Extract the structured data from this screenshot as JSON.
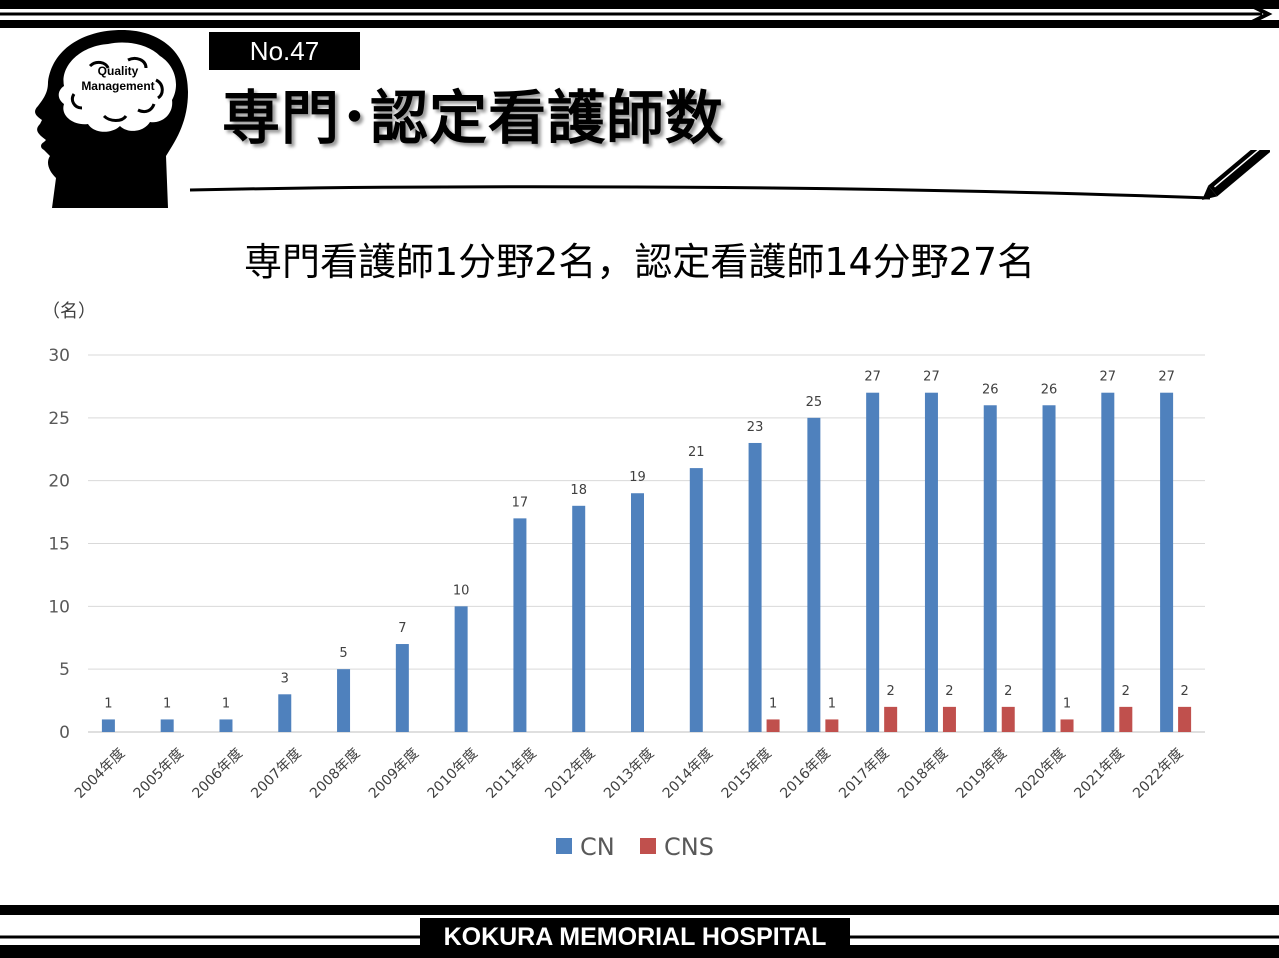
{
  "header": {
    "number_badge": "No.47",
    "title": "専門･認定看護師数",
    "logo_text_line1": "Quality",
    "logo_text_line2": "Management"
  },
  "subtitle": "専門看護師1分野2名，認定看護師14分野27名",
  "footer": {
    "hospital_name": "KOKURA MEMORIAL HOSPITAL"
  },
  "colors": {
    "cn": "#4F81BD",
    "cns": "#C0504D",
    "grid": "#D9D9D9"
  },
  "chart_data": {
    "type": "bar",
    "ylabel": "（名）",
    "ylim": [
      0,
      30
    ],
    "yticks": [
      0,
      5,
      10,
      15,
      20,
      25,
      30
    ],
    "grid": true,
    "legend_position": "bottom",
    "categories": [
      "2004年度",
      "2005年度",
      "2006年度",
      "2007年度",
      "2008年度",
      "2009年度",
      "2010年度",
      "2011年度",
      "2012年度",
      "2013年度",
      "2014年度",
      "2015年度",
      "2016年度",
      "2017年度",
      "2018年度",
      "2019年度",
      "2020年度",
      "2021年度",
      "2022年度"
    ],
    "series": [
      {
        "name": "CN",
        "values": [
          1,
          1,
          1,
          3,
          5,
          7,
          10,
          17,
          18,
          19,
          21,
          23,
          25,
          27,
          27,
          26,
          26,
          27,
          27
        ]
      },
      {
        "name": "CNS",
        "values": [
          0,
          0,
          0,
          0,
          0,
          0,
          0,
          0,
          0,
          0,
          0,
          1,
          1,
          2,
          2,
          2,
          1,
          2,
          2
        ]
      }
    ]
  }
}
